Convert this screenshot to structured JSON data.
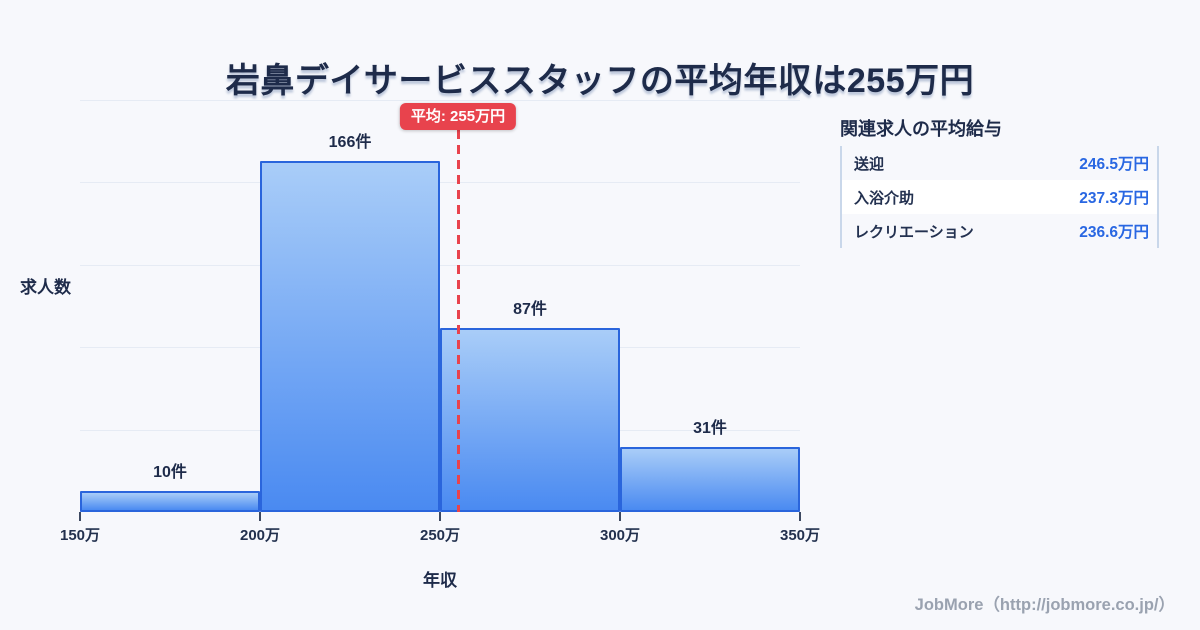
{
  "title": "岩鼻デイサービススタッフの平均年収は255万円",
  "chart_data": {
    "type": "bar",
    "title": "岩鼻デイサービススタッフの平均年収は255万円",
    "categories": [
      "150万-200万",
      "200万-250万",
      "250万-300万",
      "300万-350万"
    ],
    "values": [
      10,
      166,
      87,
      31
    ],
    "bar_labels": [
      "10件",
      "166件",
      "87件",
      "31件"
    ],
    "x_ticks": [
      "150万",
      "200万",
      "250万",
      "300万",
      "350万"
    ],
    "bin_edges": [
      150,
      200,
      250,
      300,
      350
    ],
    "xlabel": "年収",
    "ylabel": "求人数",
    "xlim": [
      150,
      350
    ],
    "ylim": [
      0,
      195
    ],
    "grid": true,
    "average": {
      "value": 255,
      "label": "平均: 255万円"
    },
    "colors": {
      "bar_fill_top": "#a9cdf8",
      "bar_fill_bottom": "#4a8af1",
      "bar_border": "#2a65dc",
      "average_line": "#e8434d",
      "value_text": "#2967e2",
      "heading_text": "#1e2b4a",
      "background": "#f7f8fc"
    }
  },
  "side_panel": {
    "heading": "関連求人の平均給与",
    "rows": [
      {
        "label": "送迎",
        "value": "246.5万円"
      },
      {
        "label": "入浴介助",
        "value": "237.3万円"
      },
      {
        "label": "レクリエーション",
        "value": "236.6万円"
      }
    ]
  },
  "footer": {
    "credit": "JobMore（http://jobmore.co.jp/）"
  }
}
